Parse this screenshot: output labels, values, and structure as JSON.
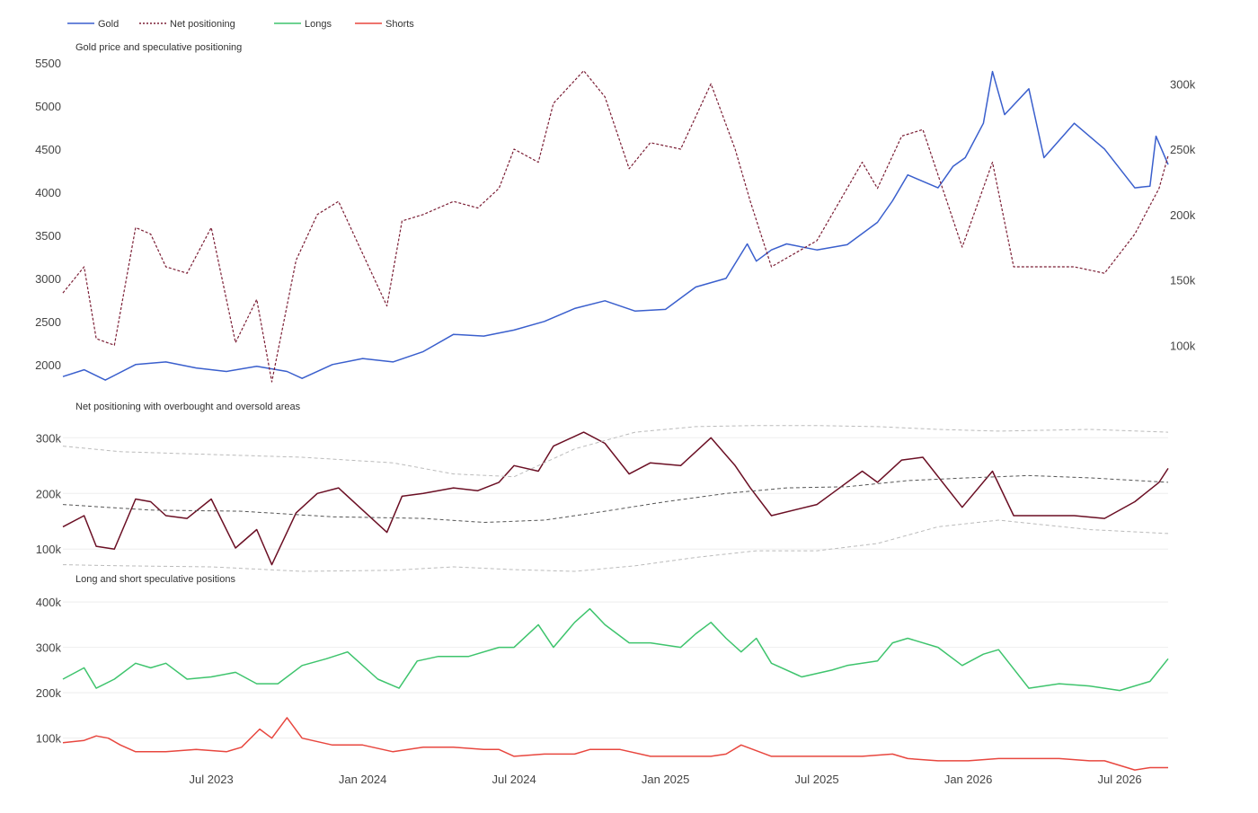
{
  "chart_data": {
    "type": "line",
    "legend": {
      "placement": "top-left",
      "items": [
        {
          "name": "Gold",
          "color": "#3a5fcd",
          "dash": "solid"
        },
        {
          "name": "Net positioning",
          "color": "#7b1e35",
          "dash": "dotted"
        },
        {
          "name": "Longs",
          "color": "#3ec46d",
          "dash": "solid"
        },
        {
          "name": "Shorts",
          "color": "#e8473f",
          "dash": "solid"
        }
      ]
    },
    "x_ticks": [
      "Jul 2023",
      "Jan 2024",
      "Jul 2024",
      "Jan 2025",
      "Jul 2025",
      "Jan 2026",
      "Jul 2026"
    ],
    "x_tick_values": [
      2023.5,
      2024.0,
      2024.5,
      2025.0,
      2025.5,
      2026.0,
      2026.5
    ],
    "xlim": [
      2023.01,
      2026.66
    ],
    "grid": true,
    "panels": [
      {
        "title": "Gold price and speculative positioning",
        "y_left": {
          "ylim": [
            1800,
            5500
          ],
          "ticks": [
            2000,
            2500,
            3000,
            3500,
            4000,
            4500,
            5000,
            5500
          ],
          "labels": [
            "2000",
            "2500",
            "3000",
            "3500",
            "4000",
            "4500",
            "5000",
            "5500"
          ]
        },
        "y_right": {
          "ylim": [
            72000,
            316000
          ],
          "ticks": [
            100000,
            150000,
            200000,
            250000,
            300000
          ],
          "labels": [
            "100k",
            "150k",
            "200k",
            "250k",
            "300k"
          ]
        },
        "series": [
          {
            "name": "Gold",
            "axis": "left",
            "color": "#3a5fcd",
            "x": [
              2023.01,
              2023.08,
              2023.15,
              2023.25,
              2023.35,
              2023.45,
              2023.55,
              2023.65,
              2023.75,
              2023.8,
              2023.9,
              2024.0,
              2024.1,
              2024.2,
              2024.3,
              2024.4,
              2024.5,
              2024.6,
              2024.7,
              2024.8,
              2024.9,
              2025.0,
              2025.1,
              2025.2,
              2025.27,
              2025.3,
              2025.35,
              2025.4,
              2025.5,
              2025.6,
              2025.7,
              2025.75,
              2025.8,
              2025.9,
              2025.95,
              2025.99,
              2026.05,
              2026.08,
              2026.12,
              2026.2,
              2026.25,
              2026.35,
              2026.45,
              2026.55,
              2026.6,
              2026.62,
              2026.66
            ],
            "values": [
              1860,
              1940,
              1820,
              2000,
              2030,
              1960,
              1920,
              1980,
              1920,
              1840,
              2000,
              2070,
              2030,
              2150,
              2350,
              2330,
              2400,
              2500,
              2650,
              2740,
              2620,
              2640,
              2900,
              3000,
              3400,
              3200,
              3330,
              3400,
              3330,
              3390,
              3650,
              3900,
              4200,
              4050,
              4300,
              4400,
              4800,
              5400,
              4900,
              5200,
              4400,
              4800,
              4500,
              4050,
              4070,
              4650,
              4320
            ]
          },
          {
            "name": "Net positioning",
            "axis": "right",
            "color": "#7b1e35",
            "x": [
              2023.01,
              2023.08,
              2023.12,
              2023.18,
              2023.25,
              2023.3,
              2023.35,
              2023.42,
              2023.5,
              2023.58,
              2023.65,
              2023.7,
              2023.78,
              2023.85,
              2023.92,
              2024.0,
              2024.08,
              2024.13,
              2024.2,
              2024.3,
              2024.38,
              2024.45,
              2024.5,
              2024.58,
              2024.63,
              2024.73,
              2024.8,
              2024.88,
              2024.95,
              2025.05,
              2025.15,
              2025.23,
              2025.28,
              2025.35,
              2025.5,
              2025.55,
              2025.65,
              2025.7,
              2025.78,
              2025.85,
              2025.98,
              2026.08,
              2026.15,
              2026.25,
              2026.35,
              2026.45,
              2026.55,
              2026.63,
              2026.66
            ],
            "values": [
              140000,
              160000,
              105000,
              100000,
              190000,
              185000,
              160000,
              155000,
              190000,
              102000,
              135000,
              72000,
              165000,
              200000,
              210000,
              170000,
              130000,
              195000,
              200000,
              210000,
              205000,
              220000,
              250000,
              240000,
              285000,
              310000,
              290000,
              235000,
              255000,
              250000,
              300000,
              250000,
              210000,
              160000,
              180000,
              200000,
              240000,
              220000,
              260000,
              265000,
              175000,
              240000,
              160000,
              160000,
              160000,
              155000,
              185000,
              220000,
              245000
            ]
          }
        ]
      },
      {
        "title": "Net positioning with overbought and oversold areas",
        "y_left": {
          "ylim": [
            60000,
            315000
          ],
          "ticks": [
            100000,
            200000,
            300000
          ],
          "labels": [
            "100k",
            "200k",
            "300k"
          ]
        },
        "series": [
          {
            "name": "Net positioning",
            "color": "#6b0f24",
            "dash": "solid",
            "x": [
              2023.01,
              2023.08,
              2023.12,
              2023.18,
              2023.25,
              2023.3,
              2023.35,
              2023.42,
              2023.5,
              2023.58,
              2023.65,
              2023.7,
              2023.78,
              2023.85,
              2023.92,
              2024.0,
              2024.08,
              2024.13,
              2024.2,
              2024.3,
              2024.38,
              2024.45,
              2024.5,
              2024.58,
              2024.63,
              2024.73,
              2024.8,
              2024.88,
              2024.95,
              2025.05,
              2025.15,
              2025.23,
              2025.28,
              2025.35,
              2025.5,
              2025.55,
              2025.65,
              2025.7,
              2025.78,
              2025.85,
              2025.98,
              2026.08,
              2026.15,
              2026.25,
              2026.35,
              2026.45,
              2026.55,
              2026.63,
              2026.66
            ],
            "values": [
              140000,
              160000,
              105000,
              100000,
              190000,
              185000,
              160000,
              155000,
              190000,
              102000,
              135000,
              72000,
              165000,
              200000,
              210000,
              170000,
              130000,
              195000,
              200000,
              210000,
              205000,
              220000,
              250000,
              240000,
              285000,
              310000,
              290000,
              235000,
              255000,
              250000,
              300000,
              250000,
              210000,
              160000,
              180000,
              200000,
              240000,
              220000,
              260000,
              265000,
              175000,
              240000,
              160000,
              160000,
              160000,
              155000,
              185000,
              220000,
              245000
            ]
          },
          {
            "name": "Mean",
            "color": "#555555",
            "dash": "dashed",
            "x": [
              2023.01,
              2023.3,
              2023.6,
              2023.9,
              2024.2,
              2024.4,
              2024.6,
              2024.8,
              2025.0,
              2025.2,
              2025.4,
              2025.6,
              2025.8,
              2026.0,
              2026.2,
              2026.4,
              2026.66
            ],
            "values": [
              180000,
              170000,
              168000,
              158000,
              155000,
              148000,
              152000,
              168000,
              185000,
              200000,
              210000,
              212000,
              223000,
              228000,
              232000,
              228000,
              220000
            ]
          },
          {
            "name": "Upper band",
            "color": "#bbbbbb",
            "dash": "dashed",
            "x": [
              2023.01,
              2023.2,
              2023.5,
              2023.8,
              2024.1,
              2024.3,
              2024.5,
              2024.7,
              2024.9,
              2025.1,
              2025.3,
              2025.5,
              2025.7,
              2025.9,
              2026.1,
              2026.4,
              2026.66
            ],
            "values": [
              285000,
              275000,
              270000,
              265000,
              255000,
              235000,
              230000,
              280000,
              310000,
              320000,
              322000,
              322000,
              320000,
              315000,
              312000,
              315000,
              310000
            ]
          },
          {
            "name": "Lower band",
            "color": "#bbbbbb",
            "dash": "dashed",
            "x": [
              2023.01,
              2023.2,
              2023.5,
              2023.8,
              2024.1,
              2024.3,
              2024.5,
              2024.7,
              2024.9,
              2025.1,
              2025.3,
              2025.5,
              2025.7,
              2025.9,
              2026.1,
              2026.4,
              2026.66
            ],
            "values": [
              72000,
              70000,
              68000,
              60000,
              62000,
              68000,
              63000,
              60000,
              70000,
              85000,
              97000,
              97000,
              110000,
              140000,
              152000,
              135000,
              128000
            ]
          }
        ]
      },
      {
        "title": "Long and short speculative positions",
        "y_left": {
          "ylim": [
            40000,
            420000
          ],
          "ticks": [
            100000,
            200000,
            300000,
            400000
          ],
          "labels": [
            "100k",
            "200k",
            "300k",
            "400k"
          ]
        },
        "series": [
          {
            "name": "Longs",
            "color": "#3ec46d",
            "x": [
              2023.01,
              2023.08,
              2023.12,
              2023.18,
              2023.25,
              2023.3,
              2023.35,
              2023.42,
              2023.5,
              2023.58,
              2023.65,
              2023.72,
              2023.8,
              2023.88,
              2023.95,
              2024.05,
              2024.12,
              2024.18,
              2024.25,
              2024.35,
              2024.45,
              2024.5,
              2024.58,
              2024.63,
              2024.7,
              2024.75,
              2024.8,
              2024.88,
              2024.95,
              2025.05,
              2025.1,
              2025.15,
              2025.2,
              2025.25,
              2025.3,
              2025.35,
              2025.45,
              2025.55,
              2025.6,
              2025.7,
              2025.75,
              2025.8,
              2025.9,
              2025.98,
              2026.05,
              2026.1,
              2026.2,
              2026.3,
              2026.4,
              2026.5,
              2026.6,
              2026.66
            ],
            "values": [
              230000,
              255000,
              210000,
              230000,
              265000,
              255000,
              265000,
              230000,
              235000,
              245000,
              220000,
              220000,
              260000,
              275000,
              290000,
              230000,
              210000,
              270000,
              280000,
              280000,
              300000,
              300000,
              350000,
              300000,
              355000,
              385000,
              350000,
              310000,
              310000,
              300000,
              330000,
              355000,
              320000,
              290000,
              320000,
              265000,
              235000,
              250000,
              260000,
              270000,
              310000,
              320000,
              300000,
              260000,
              285000,
              295000,
              210000,
              220000,
              215000,
              205000,
              225000,
              275000
            ]
          },
          {
            "name": "Shorts",
            "color": "#e8473f",
            "x": [
              2023.01,
              2023.08,
              2023.12,
              2023.16,
              2023.2,
              2023.25,
              2023.35,
              2023.45,
              2023.55,
              2023.6,
              2023.66,
              2023.7,
              2023.75,
              2023.8,
              2023.9,
              2024.0,
              2024.1,
              2024.2,
              2024.3,
              2024.4,
              2024.45,
              2024.5,
              2024.6,
              2024.7,
              2024.75,
              2024.85,
              2024.95,
              2025.05,
              2025.15,
              2025.2,
              2025.25,
              2025.35,
              2025.45,
              2025.55,
              2025.65,
              2025.75,
              2025.8,
              2025.9,
              2026.0,
              2026.1,
              2026.2,
              2026.3,
              2026.4,
              2026.45,
              2026.55,
              2026.6,
              2026.66
            ],
            "values": [
              90000,
              95000,
              105000,
              100000,
              85000,
              70000,
              70000,
              75000,
              70000,
              80000,
              120000,
              100000,
              145000,
              100000,
              85000,
              85000,
              70000,
              80000,
              80000,
              75000,
              75000,
              60000,
              65000,
              65000,
              75000,
              75000,
              60000,
              60000,
              60000,
              65000,
              85000,
              60000,
              60000,
              60000,
              60000,
              65000,
              55000,
              50000,
              50000,
              55000,
              55000,
              55000,
              50000,
              50000,
              30000,
              35000,
              35000
            ]
          }
        ]
      }
    ]
  }
}
